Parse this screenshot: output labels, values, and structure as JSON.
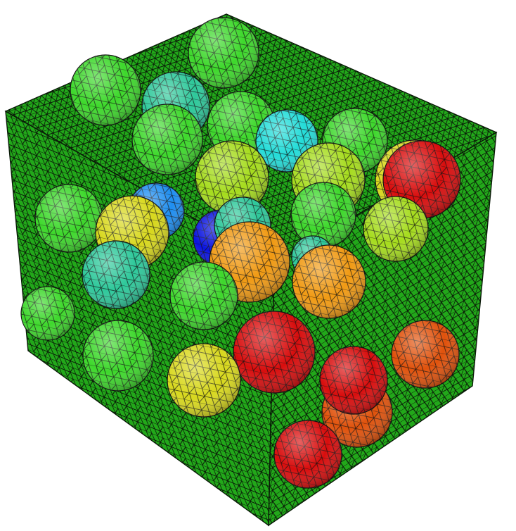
{
  "scene": {
    "background": "#ffffff",
    "matrix_color": "#22a81a",
    "mesh_line_color": "#0a1a08",
    "inclusion_colors": {
      "red": "#d80d0d",
      "orange_red": "#e0520c",
      "orange": "#f09a14",
      "yellow": "#d8d81e",
      "yellow_green": "#a6dc1e",
      "green": "#3ed82c",
      "light_green": "#5ee042",
      "teal": "#2ec89a",
      "cyan": "#24dcd8",
      "blue_cyan": "#1e8ef0",
      "blue": "#0a14e0"
    }
  }
}
